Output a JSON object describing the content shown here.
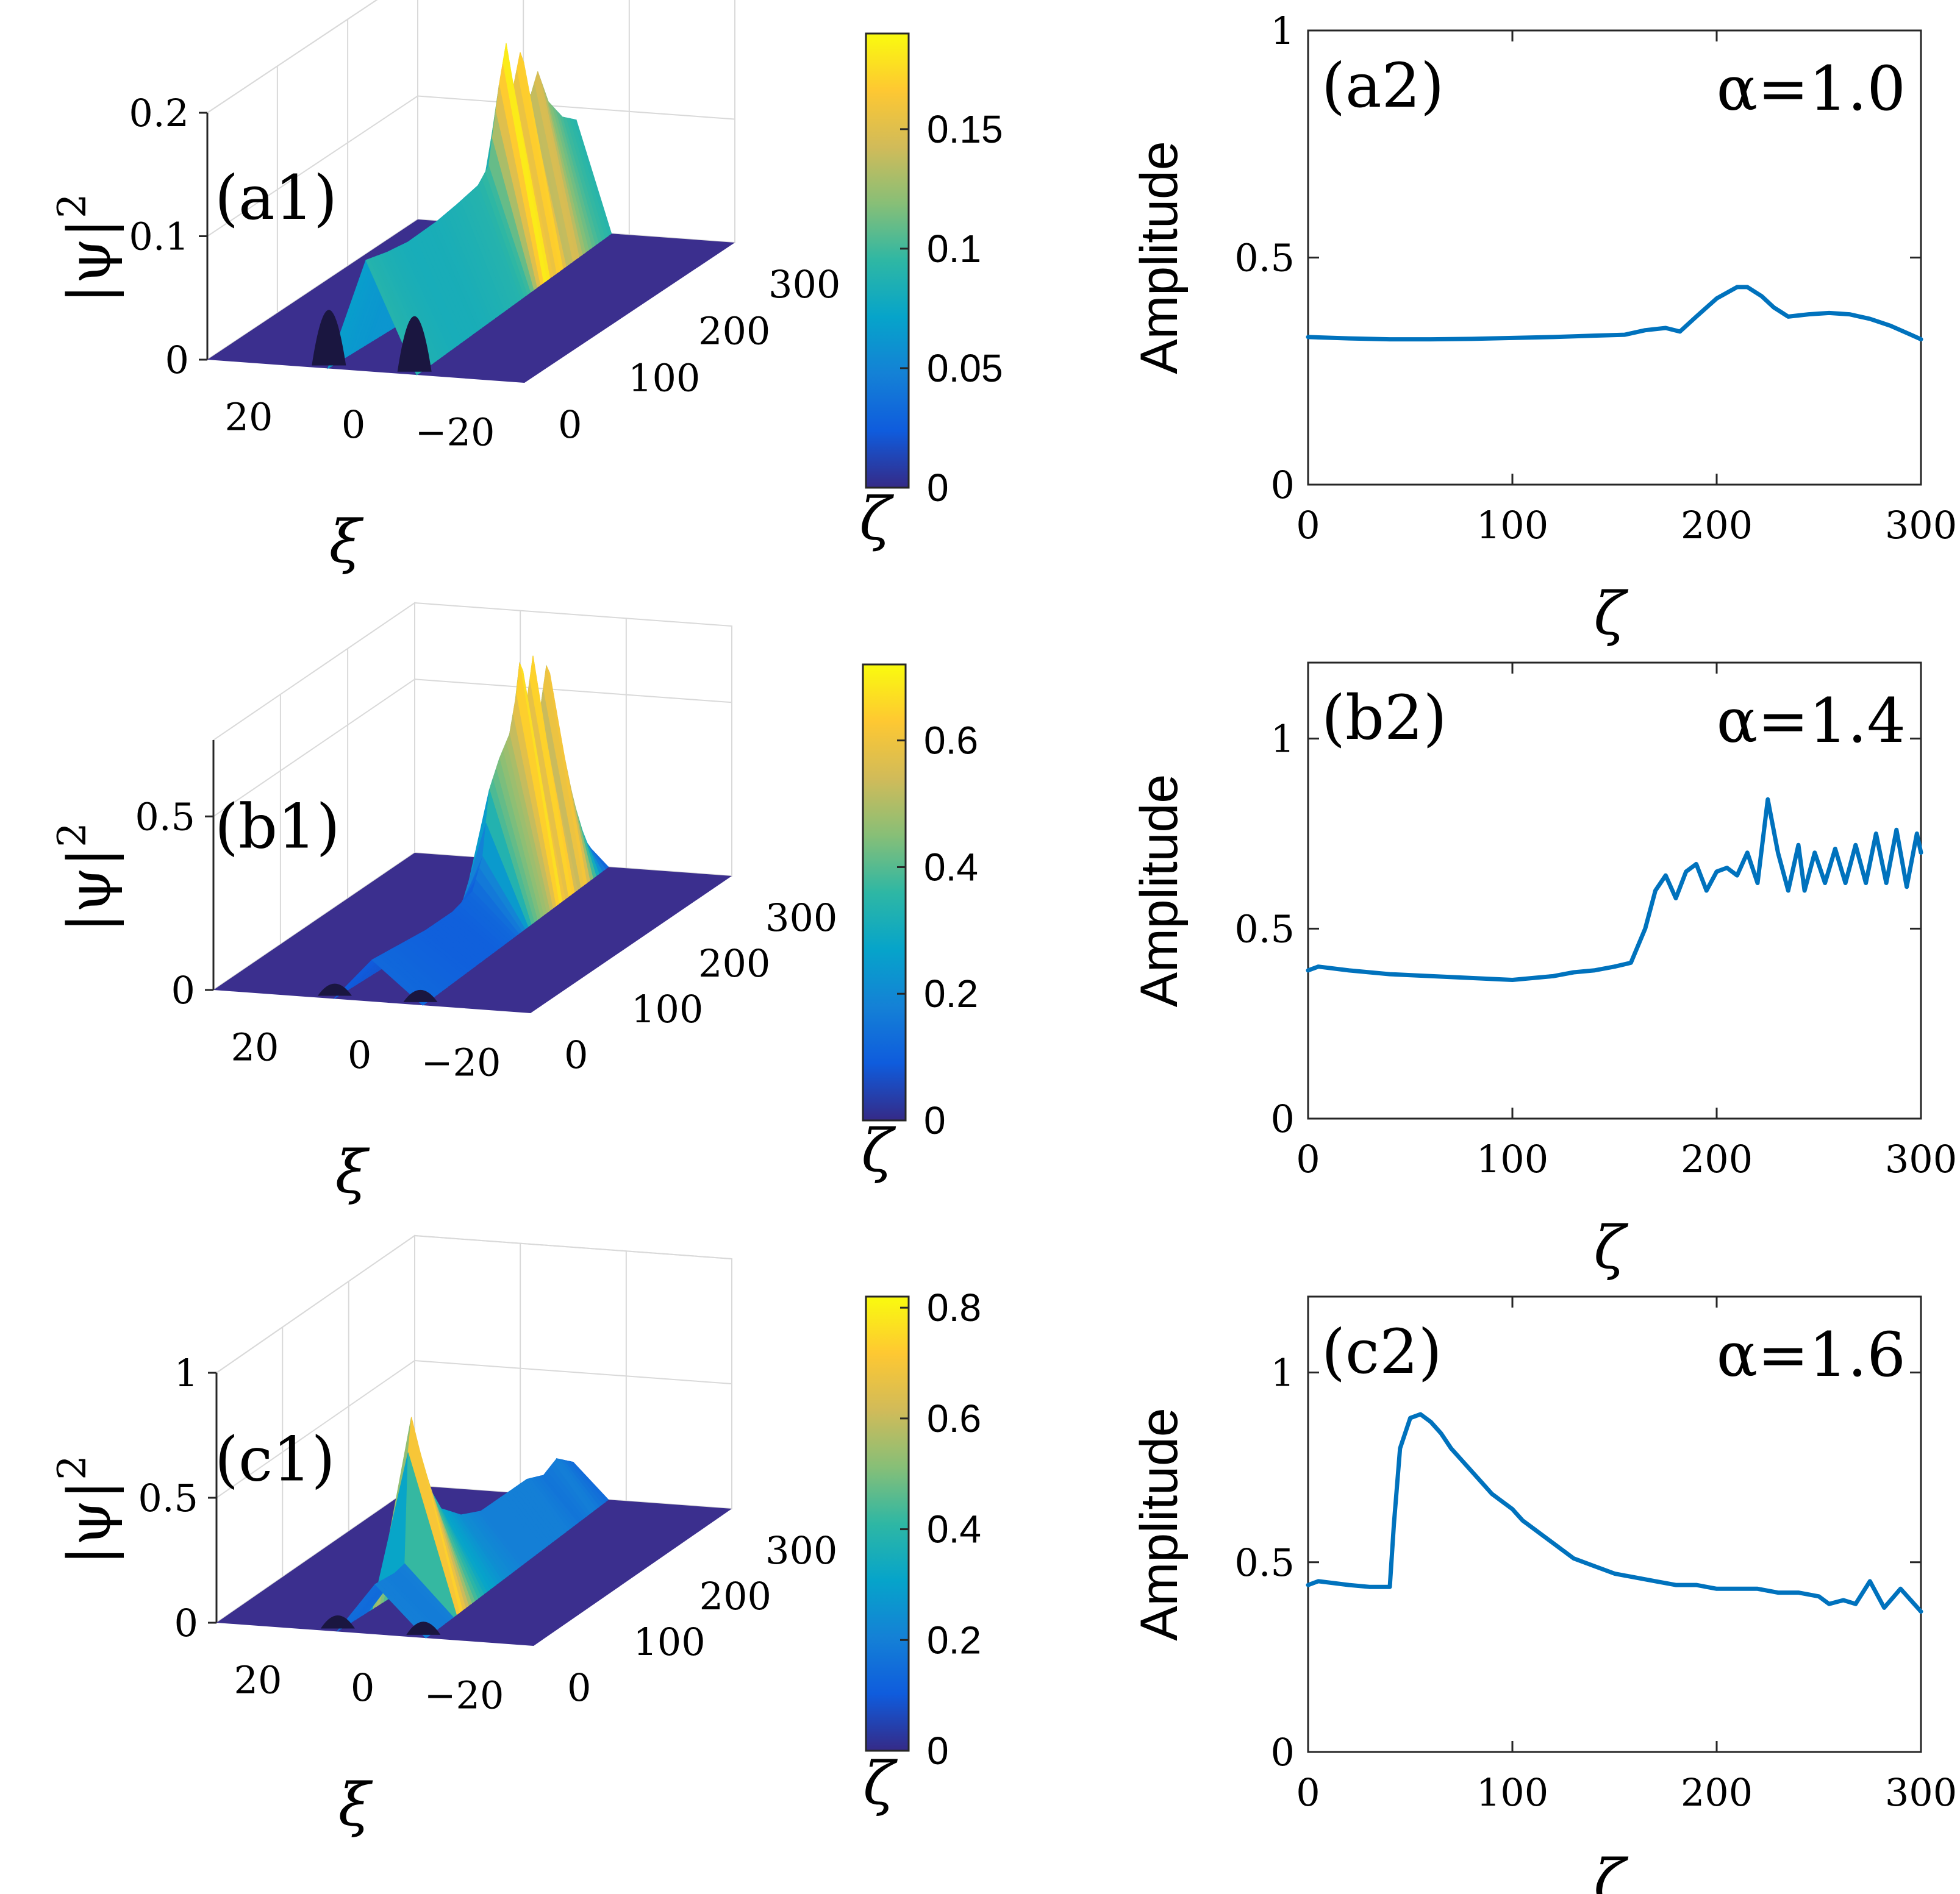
{
  "chart_data": [
    {
      "id": "a1",
      "type": "area",
      "label": "(a1)",
      "zlabel": "|ψ|",
      "zlabel_sup": "2",
      "xlabel": "ξ",
      "ylabel": "ζ",
      "z_ticks": [
        "0",
        "0.1",
        "0.2"
      ],
      "xi_ticks": [
        "20",
        "0",
        "−20"
      ],
      "zeta_ticks": [
        "0",
        "100",
        "200",
        "300"
      ],
      "z_max": 0.2,
      "colorbar": {
        "max": 0.19,
        "ticks": [
          0,
          0.05,
          0.1,
          0.15
        ],
        "tick_labels": [
          "0",
          "0.05",
          "0.1",
          "0.15"
        ]
      },
      "profile": [
        {
          "zeta": 0,
          "amp": 0.09
        },
        {
          "zeta": 30,
          "amp": 0.085
        },
        {
          "zeta": 60,
          "amp": 0.082
        },
        {
          "zeta": 100,
          "amp": 0.083
        },
        {
          "zeta": 130,
          "amp": 0.086
        },
        {
          "zeta": 160,
          "amp": 0.09
        },
        {
          "zeta": 175,
          "amp": 0.1
        },
        {
          "zeta": 190,
          "amp": 0.16
        },
        {
          "zeta": 200,
          "amp": 0.19
        },
        {
          "zeta": 210,
          "amp": 0.15
        },
        {
          "zeta": 222,
          "amp": 0.18
        },
        {
          "zeta": 232,
          "amp": 0.13
        },
        {
          "zeta": 245,
          "amp": 0.15
        },
        {
          "zeta": 260,
          "amp": 0.12
        },
        {
          "zeta": 280,
          "amp": 0.1
        },
        {
          "zeta": 300,
          "amp": 0.09
        }
      ]
    },
    {
      "id": "a2",
      "type": "line",
      "label": "(a2)",
      "alpha_label": "α=1.0",
      "xlabel": "ζ",
      "ylabel": "Amplitude",
      "xlim": [
        0,
        300
      ],
      "ylim": [
        0,
        1
      ],
      "xticks": [
        0,
        100,
        200,
        300
      ],
      "yticks": [
        0,
        0.5,
        1
      ],
      "x_tick_labels": [
        "0",
        "100",
        "200",
        "300"
      ],
      "y_tick_labels": [
        "0",
        "0.5",
        "1"
      ],
      "x": [
        0,
        20,
        40,
        60,
        80,
        100,
        120,
        140,
        155,
        165,
        175,
        182,
        190,
        200,
        210,
        215,
        222,
        228,
        235,
        245,
        255,
        265,
        275,
        285,
        295,
        300
      ],
      "y": [
        0.325,
        0.322,
        0.32,
        0.32,
        0.321,
        0.323,
        0.325,
        0.328,
        0.33,
        0.34,
        0.345,
        0.337,
        0.37,
        0.41,
        0.435,
        0.435,
        0.415,
        0.39,
        0.37,
        0.375,
        0.378,
        0.375,
        0.365,
        0.35,
        0.33,
        0.32
      ]
    },
    {
      "id": "b1",
      "type": "area",
      "label": "(b1)",
      "zlabel": "|ψ|",
      "zlabel_sup": "2",
      "xlabel": "ξ",
      "ylabel": "ζ",
      "z_ticks": [
        "0",
        "0.5"
      ],
      "xi_ticks": [
        "20",
        "0",
        "−20"
      ],
      "zeta_ticks": [
        "0",
        "100",
        "200",
        "300"
      ],
      "z_max": 0.72,
      "colorbar": {
        "max": 0.72,
        "ticks": [
          0,
          0.2,
          0.4,
          0.6
        ],
        "tick_labels": [
          "0",
          "0.2",
          "0.4",
          "0.6"
        ]
      },
      "profile": [
        {
          "zeta": 0,
          "amp": 0.12
        },
        {
          "zeta": 40,
          "amp": 0.11
        },
        {
          "zeta": 80,
          "amp": 0.1
        },
        {
          "zeta": 120,
          "amp": 0.1
        },
        {
          "zeta": 150,
          "amp": 0.12
        },
        {
          "zeta": 165,
          "amp": 0.2
        },
        {
          "zeta": 175,
          "amp": 0.38
        },
        {
          "zeta": 190,
          "amp": 0.45
        },
        {
          "zeta": 205,
          "amp": 0.5
        },
        {
          "zeta": 215,
          "amp": 0.6
        },
        {
          "zeta": 222,
          "amp": 0.72
        },
        {
          "zeta": 230,
          "amp": 0.55
        },
        {
          "zeta": 240,
          "amp": 0.68
        },
        {
          "zeta": 250,
          "amp": 0.5
        },
        {
          "zeta": 262,
          "amp": 0.65
        },
        {
          "zeta": 275,
          "amp": 0.42
        },
        {
          "zeta": 290,
          "amp": 0.18
        },
        {
          "zeta": 300,
          "amp": 0.1
        }
      ]
    },
    {
      "id": "b2",
      "type": "line",
      "label": "(b2)",
      "alpha_label": "α=1.4",
      "xlabel": "ζ",
      "ylabel": "Amplitude",
      "xlim": [
        0,
        300
      ],
      "ylim": [
        0,
        1.2
      ],
      "xticks": [
        0,
        100,
        200,
        300
      ],
      "yticks": [
        0,
        0.5,
        1
      ],
      "x_tick_labels": [
        "0",
        "100",
        "200",
        "300"
      ],
      "y_tick_labels": [
        "0",
        "0.5",
        "1"
      ],
      "x": [
        0,
        5,
        20,
        40,
        60,
        80,
        100,
        110,
        120,
        130,
        140,
        150,
        158,
        165,
        170,
        175,
        180,
        185,
        190,
        195,
        200,
        205,
        210,
        215,
        220,
        225,
        230,
        235,
        240,
        243,
        248,
        253,
        258,
        263,
        268,
        273,
        278,
        283,
        288,
        293,
        298,
        300
      ],
      "y": [
        0.39,
        0.4,
        0.39,
        0.38,
        0.375,
        0.37,
        0.365,
        0.37,
        0.375,
        0.385,
        0.39,
        0.4,
        0.41,
        0.5,
        0.6,
        0.64,
        0.58,
        0.65,
        0.67,
        0.6,
        0.65,
        0.66,
        0.64,
        0.7,
        0.62,
        0.84,
        0.7,
        0.6,
        0.72,
        0.6,
        0.7,
        0.62,
        0.71,
        0.62,
        0.72,
        0.62,
        0.75,
        0.62,
        0.76,
        0.61,
        0.75,
        0.7
      ]
    },
    {
      "id": "c1",
      "type": "area",
      "label": "(c1)",
      "zlabel": "|ψ|",
      "zlabel_sup": "2",
      "xlabel": "ξ",
      "ylabel": "ζ",
      "z_ticks": [
        "0",
        "0.5",
        "1"
      ],
      "xi_ticks": [
        "20",
        "0",
        "−20"
      ],
      "zeta_ticks": [
        "0",
        "100",
        "200",
        "300"
      ],
      "z_max": 1.0,
      "colorbar": {
        "max": 0.82,
        "ticks": [
          0,
          0.2,
          0.4,
          0.6,
          0.8
        ],
        "tick_labels": [
          "0",
          "0.2",
          "0.4",
          "0.6",
          "0.8"
        ]
      },
      "profile": [
        {
          "zeta": 0,
          "amp": 0.2
        },
        {
          "zeta": 30,
          "amp": 0.19
        },
        {
          "zeta": 45,
          "amp": 0.2
        },
        {
          "zeta": 52,
          "amp": 0.81
        },
        {
          "zeta": 60,
          "amp": 0.7
        },
        {
          "zeta": 80,
          "amp": 0.45
        },
        {
          "zeta": 100,
          "amp": 0.32
        },
        {
          "zeta": 130,
          "amp": 0.24
        },
        {
          "zeta": 160,
          "amp": 0.2
        },
        {
          "zeta": 200,
          "amp": 0.2
        },
        {
          "zeta": 230,
          "amp": 0.2
        },
        {
          "zeta": 255,
          "amp": 0.17
        },
        {
          "zeta": 275,
          "amp": 0.2
        },
        {
          "zeta": 300,
          "amp": 0.14
        }
      ]
    },
    {
      "id": "c2",
      "type": "line",
      "label": "(c2)",
      "alpha_label": "α=1.6",
      "xlabel": "ζ",
      "ylabel": "Amplitude",
      "xlim": [
        0,
        300
      ],
      "ylim": [
        0,
        1.2
      ],
      "xticks": [
        0,
        100,
        200,
        300
      ],
      "yticks": [
        0,
        0.5,
        1
      ],
      "x_tick_labels": [
        "0",
        "100",
        "200",
        "300"
      ],
      "y_tick_labels": [
        "0",
        "0.5",
        "1"
      ],
      "x": [
        0,
        5,
        20,
        30,
        40,
        42,
        45,
        50,
        55,
        60,
        65,
        70,
        75,
        80,
        85,
        90,
        95,
        100,
        105,
        110,
        115,
        120,
        125,
        130,
        140,
        150,
        160,
        170,
        180,
        190,
        200,
        210,
        220,
        230,
        240,
        250,
        255,
        262,
        268,
        275,
        282,
        290,
        295,
        300
      ],
      "y": [
        0.44,
        0.45,
        0.44,
        0.435,
        0.435,
        0.6,
        0.8,
        0.88,
        0.89,
        0.87,
        0.84,
        0.8,
        0.77,
        0.74,
        0.71,
        0.68,
        0.66,
        0.64,
        0.61,
        0.59,
        0.57,
        0.55,
        0.53,
        0.51,
        0.49,
        0.47,
        0.46,
        0.45,
        0.44,
        0.44,
        0.43,
        0.43,
        0.43,
        0.42,
        0.42,
        0.41,
        0.39,
        0.4,
        0.39,
        0.45,
        0.38,
        0.43,
        0.4,
        0.37
      ]
    }
  ]
}
